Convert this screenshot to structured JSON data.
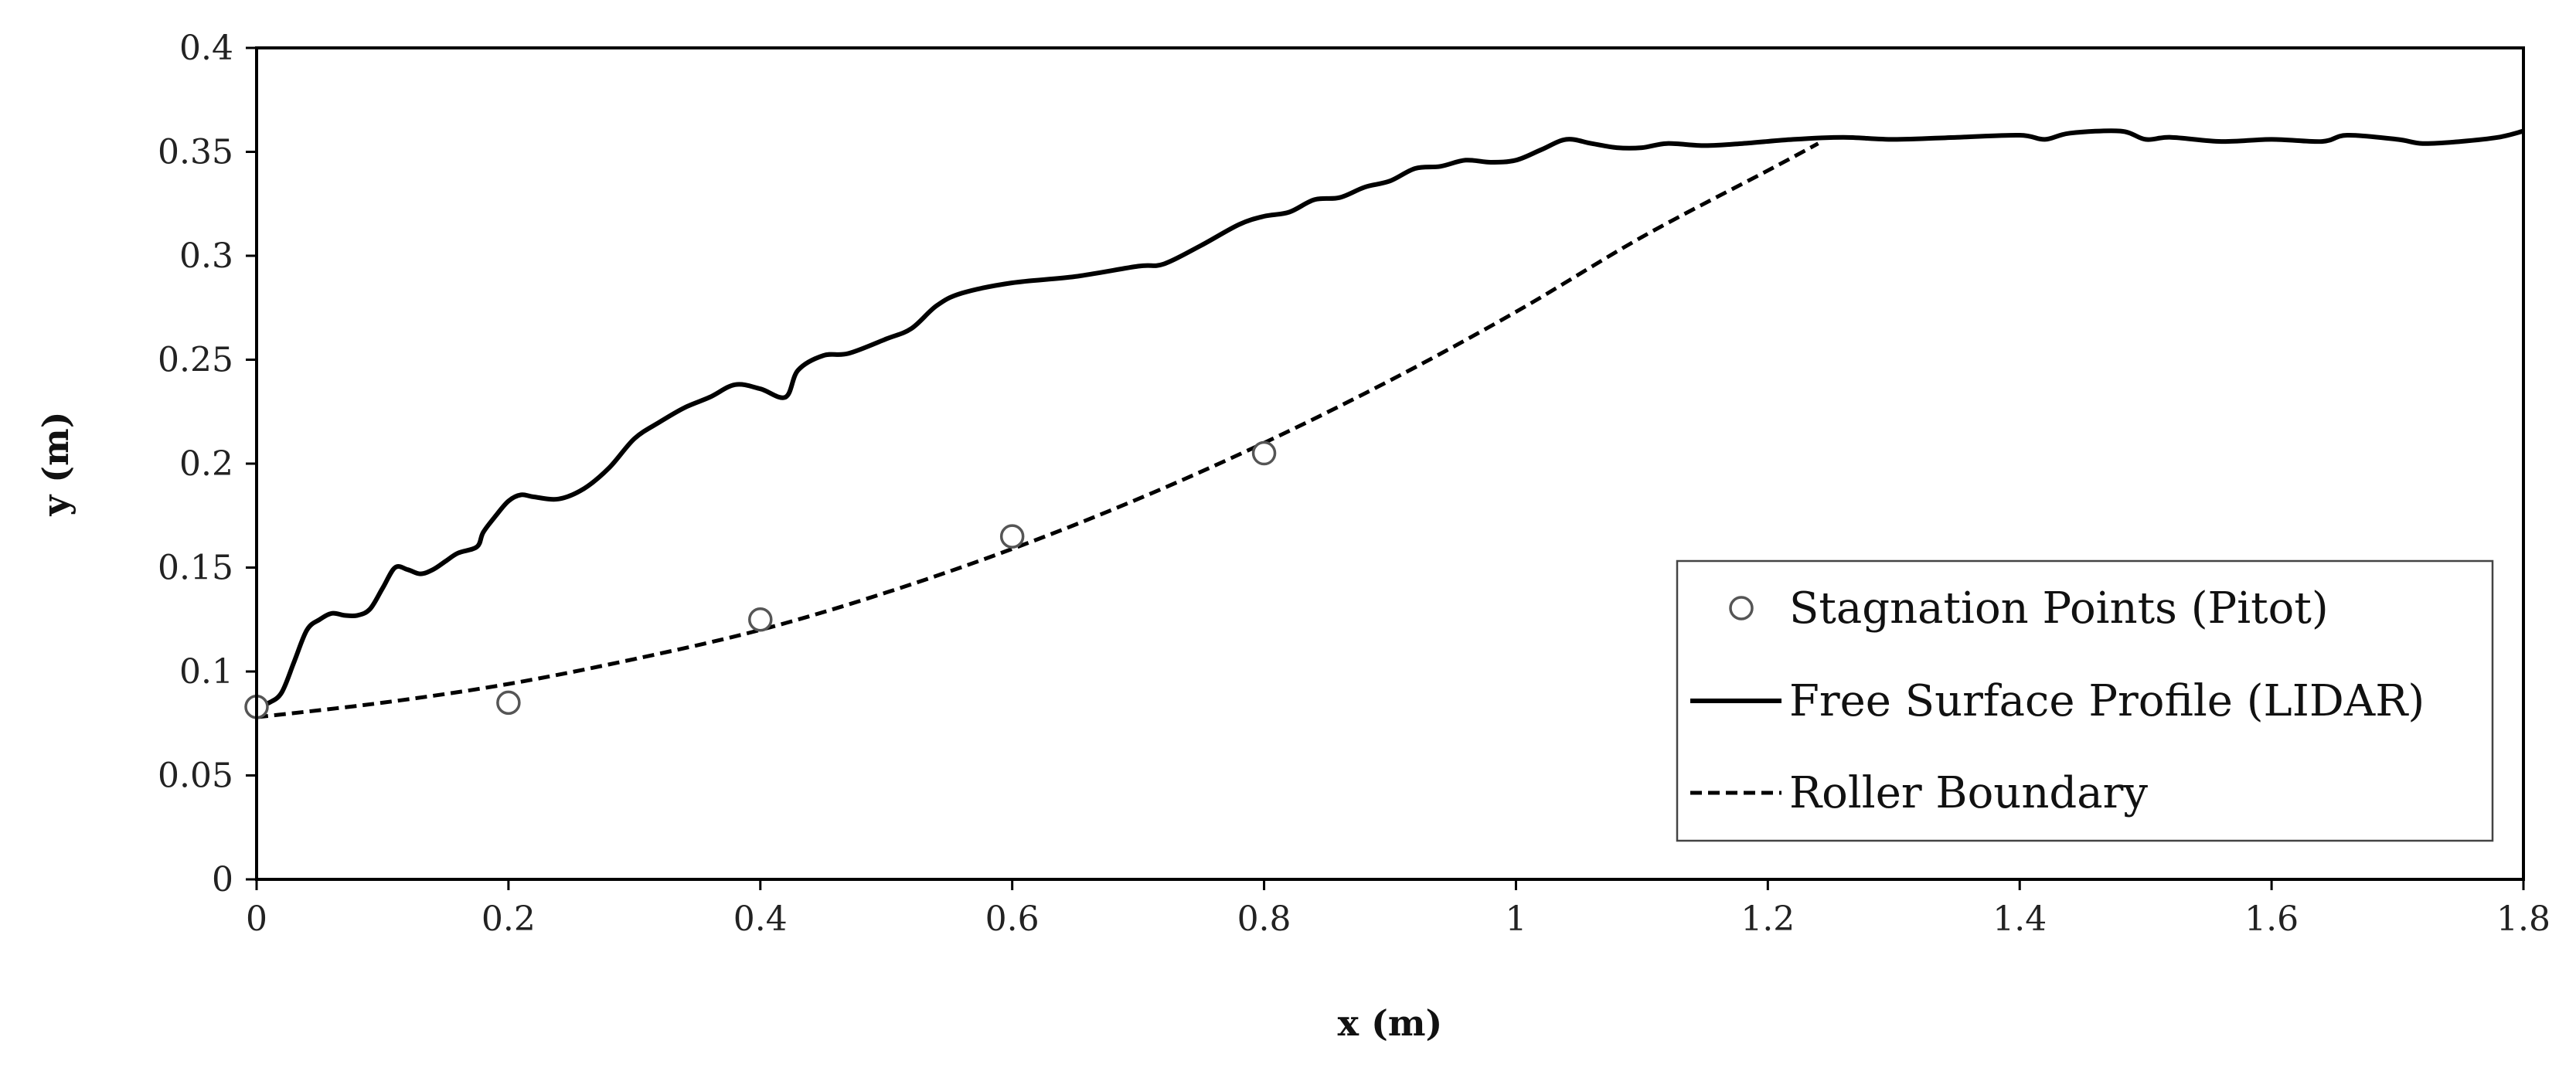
{
  "chart_data": {
    "type": "line",
    "title": "",
    "xlabel": "x (m)",
    "ylabel": "y (m)",
    "xlim": [
      0,
      1.8
    ],
    "ylim": [
      0,
      0.4
    ],
    "x_ticks": [
      "0",
      "0.2",
      "0.4",
      "0.6",
      "0.8",
      "1",
      "1.2",
      "1.4",
      "1.6",
      "1.8"
    ],
    "y_ticks": [
      "0",
      "0.05",
      "0.1",
      "0.15",
      "0.2",
      "0.25",
      "0.3",
      "0.35",
      "0.4"
    ],
    "grid": false,
    "legend_position": "bottom-right",
    "series": [
      {
        "name": "Stagnation Points (Pitot)",
        "style": "markers",
        "marker": "open-circle",
        "x": [
          0,
          0.2,
          0.4,
          0.6,
          0.8
        ],
        "y": [
          0.083,
          0.085,
          0.125,
          0.165,
          0.205
        ]
      },
      {
        "name": "Free Surface Profile (LIDAR)",
        "style": "solid",
        "x": [
          0,
          0.01,
          0.02,
          0.03,
          0.04,
          0.05,
          0.06,
          0.07,
          0.08,
          0.09,
          0.1,
          0.11,
          0.12,
          0.13,
          0.14,
          0.15,
          0.16,
          0.175,
          0.18,
          0.19,
          0.2,
          0.21,
          0.22,
          0.24,
          0.26,
          0.28,
          0.3,
          0.32,
          0.34,
          0.36,
          0.38,
          0.4,
          0.42,
          0.43,
          0.45,
          0.47,
          0.5,
          0.52,
          0.54,
          0.56,
          0.6,
          0.65,
          0.7,
          0.72,
          0.75,
          0.78,
          0.8,
          0.82,
          0.84,
          0.86,
          0.88,
          0.9,
          0.92,
          0.94,
          0.96,
          0.98,
          1.0,
          1.02,
          1.04,
          1.06,
          1.08,
          1.1,
          1.12,
          1.15,
          1.18,
          1.22,
          1.26,
          1.3,
          1.35,
          1.4,
          1.42,
          1.44,
          1.48,
          1.5,
          1.52,
          1.56,
          1.6,
          1.64,
          1.66,
          1.7,
          1.72,
          1.75,
          1.78,
          1.8
        ],
        "y": [
          0.083,
          0.085,
          0.09,
          0.105,
          0.12,
          0.125,
          0.128,
          0.127,
          0.127,
          0.13,
          0.14,
          0.15,
          0.149,
          0.147,
          0.149,
          0.153,
          0.157,
          0.16,
          0.167,
          0.175,
          0.182,
          0.185,
          0.184,
          0.183,
          0.188,
          0.198,
          0.212,
          0.22,
          0.227,
          0.232,
          0.238,
          0.236,
          0.232,
          0.245,
          0.252,
          0.253,
          0.26,
          0.265,
          0.276,
          0.282,
          0.287,
          0.29,
          0.295,
          0.296,
          0.305,
          0.315,
          0.319,
          0.321,
          0.327,
          0.328,
          0.333,
          0.336,
          0.342,
          0.343,
          0.346,
          0.345,
          0.346,
          0.351,
          0.356,
          0.354,
          0.352,
          0.352,
          0.354,
          0.353,
          0.354,
          0.356,
          0.357,
          0.356,
          0.357,
          0.358,
          0.356,
          0.359,
          0.36,
          0.356,
          0.357,
          0.355,
          0.356,
          0.355,
          0.358,
          0.356,
          0.354,
          0.355,
          0.357,
          0.36
        ]
      },
      {
        "name": "Roller Boundary",
        "style": "dashed",
        "x": [
          0,
          0.1,
          0.2,
          0.3,
          0.4,
          0.5,
          0.6,
          0.7,
          0.8,
          0.9,
          1.0,
          1.1,
          1.2,
          1.24
        ],
        "y": [
          0.078,
          0.085,
          0.094,
          0.106,
          0.12,
          0.138,
          0.159,
          0.183,
          0.21,
          0.24,
          0.273,
          0.309,
          0.341,
          0.354
        ]
      }
    ]
  }
}
